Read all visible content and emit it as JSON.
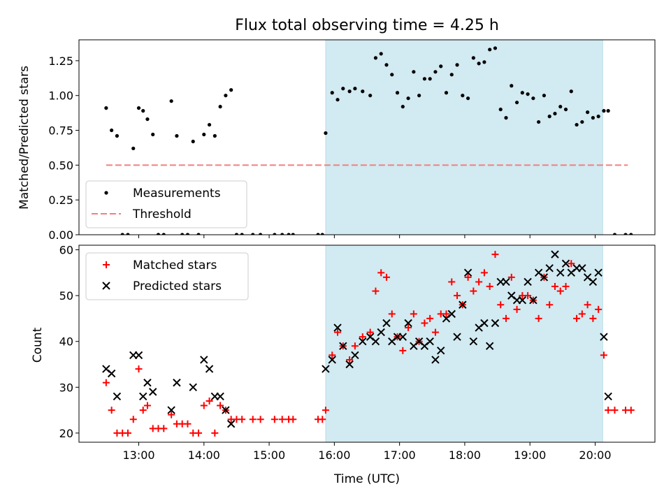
{
  "title": "Flux total observing time = 4.25 h",
  "colors": {
    "measurement": "#000000",
    "threshold": "#f08080",
    "matched": "#ff0000",
    "predicted": "#000000",
    "observing_window": "#add8e6"
  },
  "chart_data": [
    {
      "type": "scatter",
      "panel": "top",
      "ylabel": "Matched/Predicted stars",
      "ylim": [
        0,
        1.4
      ],
      "yticks": [
        0.0,
        0.25,
        0.5,
        0.75,
        1.0,
        1.25
      ],
      "ytick_labels": [
        "0.00",
        "0.25",
        "0.50",
        "0.75",
        "1.00",
        "1.25"
      ],
      "xlim": [
        "12:05",
        "20:55"
      ],
      "observing_window": [
        "15:52",
        "20:07"
      ],
      "legend": {
        "placement": "lower-left",
        "entries": [
          "Measurements",
          "Threshold"
        ]
      },
      "threshold": {
        "name": "Threshold",
        "value": 0.5,
        "x": [
          "12:30",
          "20:30"
        ]
      },
      "series": [
        {
          "name": "Measurements",
          "marker": "dot",
          "points": [
            [
              "12:30",
              0.91
            ],
            [
              "12:35",
              0.75
            ],
            [
              "12:40",
              0.71
            ],
            [
              "12:45",
              0.0
            ],
            [
              "12:50",
              0.0
            ],
            [
              "12:55",
              0.62
            ],
            [
              "13:00",
              0.91
            ],
            [
              "13:04",
              0.89
            ],
            [
              "13:08",
              0.83
            ],
            [
              "13:13",
              0.72
            ],
            [
              "13:18",
              0.0
            ],
            [
              "13:23",
              0.0
            ],
            [
              "13:30",
              0.96
            ],
            [
              "13:35",
              0.71
            ],
            [
              "13:40",
              0.0
            ],
            [
              "13:45",
              0.0
            ],
            [
              "13:50",
              0.67
            ],
            [
              "13:55",
              0.0
            ],
            [
              "14:00",
              0.72
            ],
            [
              "14:05",
              0.79
            ],
            [
              "14:10",
              0.71
            ],
            [
              "14:15",
              0.92
            ],
            [
              "14:20",
              1.0
            ],
            [
              "14:25",
              1.04
            ],
            [
              "14:30",
              0.0
            ],
            [
              "14:35",
              0.0
            ],
            [
              "14:45",
              0.0
            ],
            [
              "14:52",
              0.0
            ],
            [
              "15:05",
              0.0
            ],
            [
              "15:12",
              0.0
            ],
            [
              "15:18",
              0.0
            ],
            [
              "15:22",
              0.0
            ],
            [
              "15:45",
              0.0
            ],
            [
              "15:49",
              0.0
            ],
            [
              "15:52",
              0.73
            ],
            [
              "15:58",
              1.02
            ],
            [
              "16:03",
              0.97
            ],
            [
              "16:08",
              1.05
            ],
            [
              "16:14",
              1.03
            ],
            [
              "16:19",
              1.05
            ],
            [
              "16:26",
              1.03
            ],
            [
              "16:33",
              1.0
            ],
            [
              "16:38",
              1.27
            ],
            [
              "16:43",
              1.3
            ],
            [
              "16:48",
              1.22
            ],
            [
              "16:53",
              1.15
            ],
            [
              "16:58",
              1.02
            ],
            [
              "17:03",
              0.92
            ],
            [
              "17:08",
              0.98
            ],
            [
              "17:13",
              1.17
            ],
            [
              "17:18",
              1.0
            ],
            [
              "17:23",
              1.12
            ],
            [
              "17:28",
              1.12
            ],
            [
              "17:33",
              1.17
            ],
            [
              "17:38",
              1.21
            ],
            [
              "17:43",
              1.02
            ],
            [
              "17:48",
              1.15
            ],
            [
              "17:53",
              1.22
            ],
            [
              "17:58",
              1.0
            ],
            [
              "18:03",
              0.98
            ],
            [
              "18:08",
              1.27
            ],
            [
              "18:13",
              1.23
            ],
            [
              "18:18",
              1.24
            ],
            [
              "18:23",
              1.33
            ],
            [
              "18:28",
              1.34
            ],
            [
              "18:33",
              0.9
            ],
            [
              "18:38",
              0.84
            ],
            [
              "18:43",
              1.07
            ],
            [
              "18:48",
              0.95
            ],
            [
              "18:53",
              1.02
            ],
            [
              "18:58",
              1.01
            ],
            [
              "19:03",
              0.98
            ],
            [
              "19:08",
              0.81
            ],
            [
              "19:13",
              1.0
            ],
            [
              "19:18",
              0.85
            ],
            [
              "19:23",
              0.87
            ],
            [
              "19:28",
              0.92
            ],
            [
              "19:33",
              0.9
            ],
            [
              "19:38",
              1.03
            ],
            [
              "19:43",
              0.79
            ],
            [
              "19:48",
              0.81
            ],
            [
              "19:53",
              0.88
            ],
            [
              "19:58",
              0.84
            ],
            [
              "20:03",
              0.85
            ],
            [
              "20:08",
              0.89
            ],
            [
              "20:12",
              0.89
            ],
            [
              "20:18",
              0.0
            ],
            [
              "20:28",
              0.0
            ],
            [
              "20:33",
              0.0
            ]
          ]
        }
      ]
    },
    {
      "type": "scatter",
      "panel": "bottom",
      "xlabel": "Time (UTC)",
      "ylabel": "Count",
      "ylim": [
        18,
        61
      ],
      "yticks": [
        20,
        30,
        40,
        50,
        60
      ],
      "ytick_labels": [
        "20",
        "30",
        "40",
        "50",
        "60"
      ],
      "xlim": [
        "12:05",
        "20:55"
      ],
      "xticks": [
        "13:00",
        "14:00",
        "15:00",
        "16:00",
        "17:00",
        "18:00",
        "19:00",
        "20:00"
      ],
      "xtick_labels": [
        "13:00",
        "14:00",
        "15:00",
        "16:00",
        "17:00",
        "18:00",
        "19:00",
        "20:00"
      ],
      "observing_window": [
        "15:52",
        "20:07"
      ],
      "legend": {
        "placement": "top-left",
        "entries": [
          "Matched stars",
          "Predicted stars"
        ]
      },
      "series": [
        {
          "name": "Matched stars",
          "marker": "plus",
          "points": [
            [
              "12:30",
              31
            ],
            [
              "12:35",
              25
            ],
            [
              "12:40",
              20
            ],
            [
              "12:45",
              20
            ],
            [
              "12:50",
              20
            ],
            [
              "12:55",
              23
            ],
            [
              "13:00",
              34
            ],
            [
              "13:04",
              25
            ],
            [
              "13:08",
              26
            ],
            [
              "13:13",
              21
            ],
            [
              "13:18",
              21
            ],
            [
              "13:23",
              21
            ],
            [
              "13:30",
              24
            ],
            [
              "13:35",
              22
            ],
            [
              "13:40",
              22
            ],
            [
              "13:45",
              22
            ],
            [
              "13:50",
              20
            ],
            [
              "13:55",
              20
            ],
            [
              "14:00",
              26
            ],
            [
              "14:05",
              27
            ],
            [
              "14:10",
              20
            ],
            [
              "14:15",
              26
            ],
            [
              "14:20",
              25
            ],
            [
              "14:25",
              23
            ],
            [
              "14:30",
              23
            ],
            [
              "14:35",
              23
            ],
            [
              "14:45",
              23
            ],
            [
              "14:52",
              23
            ],
            [
              "15:05",
              23
            ],
            [
              "15:12",
              23
            ],
            [
              "15:18",
              23
            ],
            [
              "15:22",
              23
            ],
            [
              "15:45",
              23
            ],
            [
              "15:49",
              23
            ],
            [
              "15:52",
              25
            ],
            [
              "15:58",
              37
            ],
            [
              "16:03",
              42
            ],
            [
              "16:08",
              39
            ],
            [
              "16:14",
              36
            ],
            [
              "16:19",
              39
            ],
            [
              "16:26",
              41
            ],
            [
              "16:33",
              42
            ],
            [
              "16:38",
              51
            ],
            [
              "16:43",
              55
            ],
            [
              "16:48",
              54
            ],
            [
              "16:53",
              46
            ],
            [
              "16:58",
              41
            ],
            [
              "17:03",
              38
            ],
            [
              "17:08",
              43
            ],
            [
              "17:13",
              46
            ],
            [
              "17:18",
              40
            ],
            [
              "17:23",
              44
            ],
            [
              "17:28",
              45
            ],
            [
              "17:33",
              42
            ],
            [
              "17:38",
              46
            ],
            [
              "17:43",
              46
            ],
            [
              "17:48",
              53
            ],
            [
              "17:53",
              50
            ],
            [
              "17:58",
              48
            ],
            [
              "18:03",
              54
            ],
            [
              "18:08",
              51
            ],
            [
              "18:13",
              53
            ],
            [
              "18:18",
              55
            ],
            [
              "18:23",
              52
            ],
            [
              "18:28",
              59
            ],
            [
              "18:33",
              48
            ],
            [
              "18:38",
              45
            ],
            [
              "18:43",
              54
            ],
            [
              "18:48",
              47
            ],
            [
              "18:53",
              50
            ],
            [
              "18:58",
              50
            ],
            [
              "19:03",
              49
            ],
            [
              "19:08",
              45
            ],
            [
              "19:13",
              54
            ],
            [
              "19:18",
              48
            ],
            [
              "19:23",
              52
            ],
            [
              "19:28",
              51
            ],
            [
              "19:33",
              52
            ],
            [
              "19:38",
              57
            ],
            [
              "19:43",
              45
            ],
            [
              "19:48",
              46
            ],
            [
              "19:53",
              48
            ],
            [
              "19:58",
              45
            ],
            [
              "20:03",
              47
            ],
            [
              "20:08",
              37
            ],
            [
              "20:12",
              25
            ],
            [
              "20:18",
              25
            ],
            [
              "20:28",
              25
            ],
            [
              "20:33",
              25
            ]
          ]
        },
        {
          "name": "Predicted stars",
          "marker": "x",
          "points": [
            [
              "12:30",
              34
            ],
            [
              "12:35",
              33
            ],
            [
              "12:40",
              28
            ],
            [
              "12:55",
              37
            ],
            [
              "13:00",
              37
            ],
            [
              "13:04",
              28
            ],
            [
              "13:08",
              31
            ],
            [
              "13:13",
              29
            ],
            [
              "13:30",
              25
            ],
            [
              "13:35",
              31
            ],
            [
              "13:50",
              30
            ],
            [
              "14:00",
              36
            ],
            [
              "14:05",
              34
            ],
            [
              "14:10",
              28
            ],
            [
              "14:15",
              28
            ],
            [
              "14:20",
              25
            ],
            [
              "14:25",
              22
            ],
            [
              "15:52",
              34
            ],
            [
              "15:58",
              36
            ],
            [
              "16:03",
              43
            ],
            [
              "16:08",
              39
            ],
            [
              "16:14",
              35
            ],
            [
              "16:19",
              37
            ],
            [
              "16:26",
              40
            ],
            [
              "16:33",
              41
            ],
            [
              "16:38",
              40
            ],
            [
              "16:43",
              42
            ],
            [
              "16:48",
              44
            ],
            [
              "16:53",
              40
            ],
            [
              "16:58",
              41
            ],
            [
              "17:03",
              41
            ],
            [
              "17:08",
              44
            ],
            [
              "17:13",
              39
            ],
            [
              "17:18",
              40
            ],
            [
              "17:23",
              39
            ],
            [
              "17:28",
              40
            ],
            [
              "17:33",
              36
            ],
            [
              "17:38",
              38
            ],
            [
              "17:43",
              45
            ],
            [
              "17:48",
              46
            ],
            [
              "17:53",
              41
            ],
            [
              "17:58",
              48
            ],
            [
              "18:03",
              55
            ],
            [
              "18:08",
              40
            ],
            [
              "18:13",
              43
            ],
            [
              "18:18",
              44
            ],
            [
              "18:23",
              39
            ],
            [
              "18:28",
              44
            ],
            [
              "18:33",
              53
            ],
            [
              "18:38",
              53
            ],
            [
              "18:43",
              50
            ],
            [
              "18:48",
              49
            ],
            [
              "18:53",
              49
            ],
            [
              "18:58",
              53
            ],
            [
              "19:03",
              49
            ],
            [
              "19:08",
              55
            ],
            [
              "19:13",
              54
            ],
            [
              "19:18",
              56
            ],
            [
              "19:23",
              59
            ],
            [
              "19:28",
              55
            ],
            [
              "19:33",
              57
            ],
            [
              "19:38",
              55
            ],
            [
              "19:43",
              56
            ],
            [
              "19:48",
              56
            ],
            [
              "19:53",
              54
            ],
            [
              "19:58",
              53
            ],
            [
              "20:03",
              55
            ],
            [
              "20:08",
              41
            ],
            [
              "20:12",
              28
            ]
          ]
        }
      ]
    }
  ]
}
